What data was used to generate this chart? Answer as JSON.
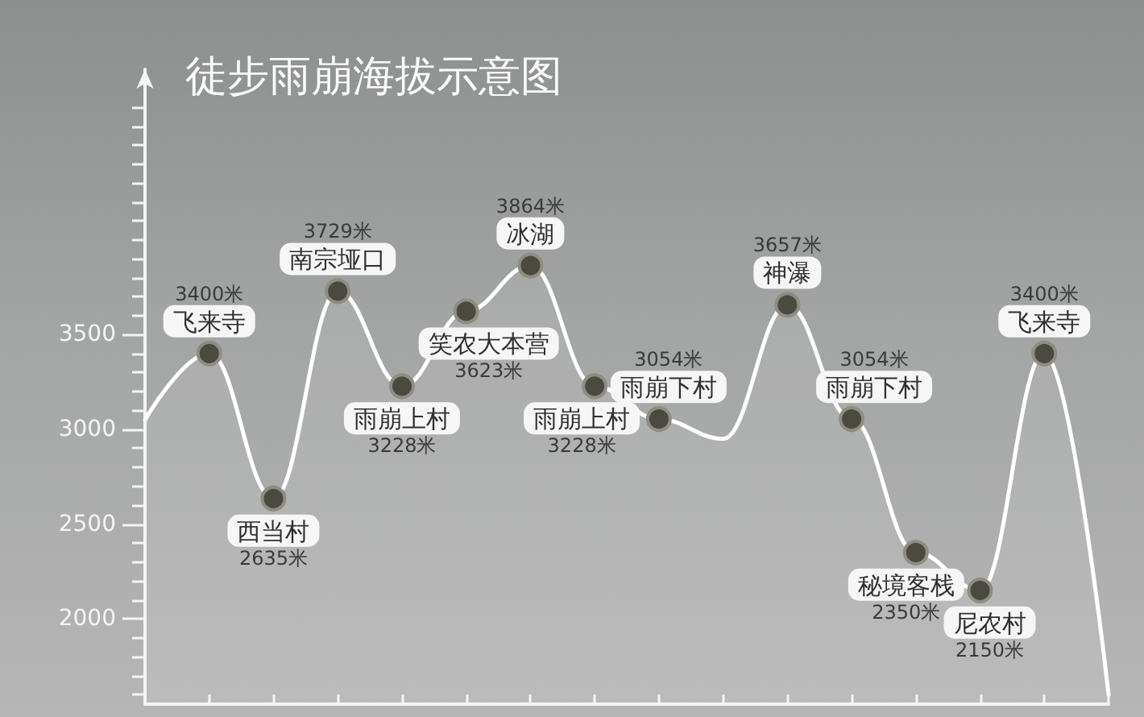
{
  "chart_data": {
    "type": "area",
    "title": "徒步雨崩海拔示意图",
    "categories": [
      null,
      "飞来寺",
      "西当村",
      "南宗垭口",
      "雨崩上村",
      "笑农大本营",
      "冰湖",
      "雨崩上村",
      "雨崩下村",
      null,
      "神瀑",
      "雨崩下村",
      "秘境客栈",
      "尼农村",
      "飞来寺",
      null
    ],
    "values": [
      3050,
      3400,
      2635,
      3729,
      3228,
      3623,
      3864,
      3228,
      3054,
      2950,
      3657,
      3054,
      2350,
      2150,
      3400,
      1600
    ],
    "value_labels": [
      null,
      "3400米",
      "2635米",
      "3729米",
      "3228米",
      "3623米",
      "3864米",
      "3228米",
      "3054米",
      null,
      "3657米",
      "3054米",
      "2350米",
      "2150米",
      "3400米",
      null
    ],
    "color": "#ffffff",
    "marker": "circle",
    "line_style": "solid",
    "tick_labels": "y",
    "ylim": [
      1550,
      4900
    ],
    "yticks": [
      {
        "value": 1600,
        "label": null
      },
      {
        "value": 1700,
        "label": null
      },
      {
        "value": 1800,
        "label": null
      },
      {
        "value": 1900,
        "label": null
      },
      2000,
      {
        "value": 2100,
        "label": null
      },
      {
        "value": 2200,
        "label": null
      },
      {
        "value": 2300,
        "label": null
      },
      {
        "value": 2400,
        "label": null
      },
      2500,
      {
        "value": 2600,
        "label": null
      },
      {
        "value": 2700,
        "label": null
      },
      {
        "value": 2800,
        "label": null
      },
      {
        "value": 2900,
        "label": null
      },
      3000,
      {
        "value": 3100,
        "label": null
      },
      {
        "value": 3200,
        "label": null
      },
      {
        "value": 3300,
        "label": null
      },
      {
        "value": 3400,
        "label": null
      },
      3500,
      {
        "value": 3600,
        "label": null
      },
      {
        "value": 3700,
        "label": null
      },
      {
        "value": 3800,
        "label": null
      },
      {
        "value": 3900,
        "label": null
      },
      {
        "value": 4000,
        "label": null
      },
      {
        "value": 4100,
        "label": null
      },
      {
        "value": 4200,
        "label": null
      },
      {
        "value": 4300,
        "label": null
      },
      {
        "value": 4400,
        "label": null
      },
      {
        "value": 4500,
        "label": null
      },
      {
        "value": 4600,
        "label": null
      },
      {
        "value": 4700,
        "label": null
      }
    ]
  }
}
